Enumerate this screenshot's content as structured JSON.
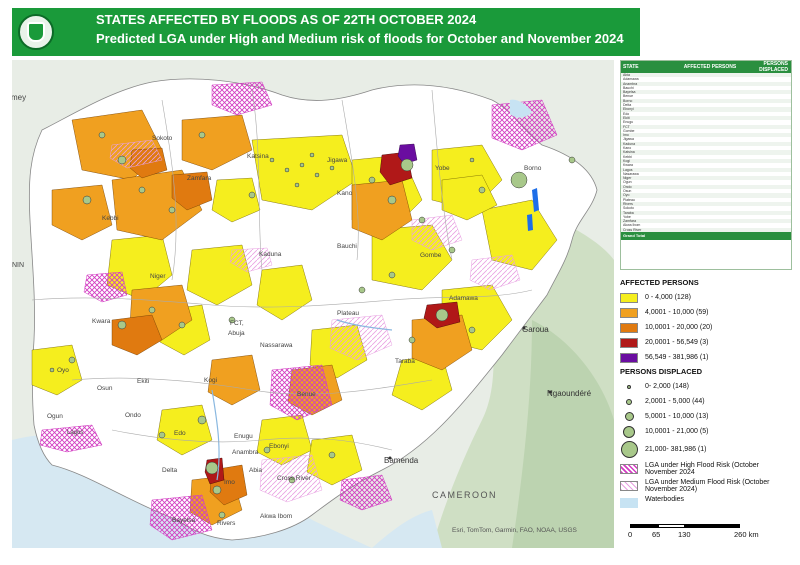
{
  "header": {
    "title_line1": "STATES AFFECTED BY FLOODS  AS OF 22TH OCTOBER 2024",
    "title_line2": "Predicted LGA under High and Medium risk of floods for October and November 2024"
  },
  "map": {
    "background_color": "#e8ede6",
    "labels": {
      "sokoto": "Sokoto",
      "katsina": "Katsina",
      "zamfara": "Zamfara",
      "kebbi": "Kebbi",
      "kano": "Kano",
      "jigawa": "Jigawa",
      "yobe": "Yobe",
      "borno": "Borno",
      "bauchi": "Bauchi",
      "gombe": "Gombe",
      "kaduna": "Kaduna",
      "niger": "Niger",
      "fct": "FCT,",
      "abuja": "Abuja",
      "plateau": "Plateau",
      "nassarawa": "Nassarawa",
      "adamawa": "Adamawa",
      "taraba": "Taraba",
      "kwara": "Kwara",
      "oyo": "Oyo",
      "osun": "Osun",
      "ekiti": "Ekiti",
      "kogi": "Kogi",
      "benue": "Benue",
      "ogun": "Ogun",
      "ondo": "Ondo",
      "edo": "Edo",
      "lagos": "Lagos",
      "enugu": "Enugu",
      "ebonyi": "Ebonyi",
      "anambra": "Anambra",
      "abia": "Abia",
      "imo": "Imo",
      "cross_river": "Cross River",
      "akwa_ibom": "Akwa\nIbom",
      "rivers": "Rivers",
      "bayelsa": "Bayelsa",
      "delta": "Delta",
      "garoua": "Garoua",
      "ngaoundere": "Ngaoundéré",
      "bamenda": "Bamenda",
      "cameroon": "CAMEROON",
      "niamey": "mey",
      "benin": "NIN"
    },
    "attribution": "Esri, TomTom, Garmin, FAO, NOAA, USGS"
  },
  "table": {
    "headers": [
      "STATE",
      "AFFECTED PERSONS",
      "PERSONS DISPLACED"
    ],
    "rows": [
      [
        "Abia",
        "",
        ""
      ],
      [
        "Adamawa",
        "",
        ""
      ],
      [
        "Anambra",
        "",
        ""
      ],
      [
        "Bauchi",
        "",
        ""
      ],
      [
        "Bayelsa",
        "",
        ""
      ],
      [
        "Benue",
        "",
        ""
      ],
      [
        "Borno",
        "",
        ""
      ],
      [
        "Delta",
        "",
        ""
      ],
      [
        "Ebonyi",
        "",
        ""
      ],
      [
        "Edo",
        "",
        ""
      ],
      [
        "Ekiti",
        "",
        ""
      ],
      [
        "Enugu",
        "",
        ""
      ],
      [
        "FCT",
        "",
        ""
      ],
      [
        "Gombe",
        "",
        ""
      ],
      [
        "Imo",
        "",
        ""
      ],
      [
        "Jigawa",
        "",
        ""
      ],
      [
        "Kaduna",
        "",
        ""
      ],
      [
        "Kano",
        "",
        ""
      ],
      [
        "Katsina",
        "",
        ""
      ],
      [
        "Kebbi",
        "",
        ""
      ],
      [
        "Kogi",
        "",
        ""
      ],
      [
        "Kwara",
        "",
        ""
      ],
      [
        "Lagos",
        "",
        ""
      ],
      [
        "Nasarawa",
        "",
        ""
      ],
      [
        "Niger",
        "",
        ""
      ],
      [
        "Ogun",
        "",
        ""
      ],
      [
        "Ondo",
        "",
        ""
      ],
      [
        "Osun",
        "",
        ""
      ],
      [
        "Oyo",
        "",
        ""
      ],
      [
        "Plateau",
        "",
        ""
      ],
      [
        "Rivers",
        "",
        ""
      ],
      [
        "Sokoto",
        "",
        ""
      ],
      [
        "Taraba",
        "",
        ""
      ],
      [
        "Yobe",
        "",
        ""
      ],
      [
        "Zamfara",
        "",
        ""
      ],
      [
        "Akwa Ibom",
        "",
        ""
      ],
      [
        "Cross River",
        "",
        ""
      ]
    ],
    "total_label": "Grand Total",
    "total_affected": "",
    "total_displaced": ""
  },
  "legend": {
    "affected_title": "AFFECTED PERSONS",
    "affected_classes": [
      {
        "label": "0 - 4,000  (128)",
        "color": "#f5ee1e"
      },
      {
        "label": "4,0001 - 10,000  (59)",
        "color": "#f0a020"
      },
      {
        "label": "10,0001 - 20,000  (20)",
        "color": "#e07a10"
      },
      {
        "label": "20,0001 - 56,549 (3)",
        "color": "#b01818"
      },
      {
        "label": "56,549 - 381,986 (1)",
        "color": "#6a0da0"
      }
    ],
    "displaced_title": "PERSONS DISPLACED",
    "displaced_classes": [
      {
        "label": "0- 2,000 (148)"
      },
      {
        "label": "2,0001 - 5,000 (44)"
      },
      {
        "label": "5,0001 - 10,000 (13)"
      },
      {
        "label": "10,0001 - 21,000 (5)"
      },
      {
        "label": "21,000- 381,986 (1)"
      }
    ],
    "high_risk_label": "LGA under High Flood Risk (October November 2024",
    "medium_risk_label": "LGA under Medium Flood Risk (October November 2024)",
    "waterbodies_label": "Waterbodies",
    "high_risk_color": "#d23cc2",
    "medium_risk_color": "#e8a0e2",
    "water_color": "#c7e3f3"
  },
  "scale": {
    "labels": [
      "0",
      "65",
      "130",
      "260 km"
    ]
  }
}
